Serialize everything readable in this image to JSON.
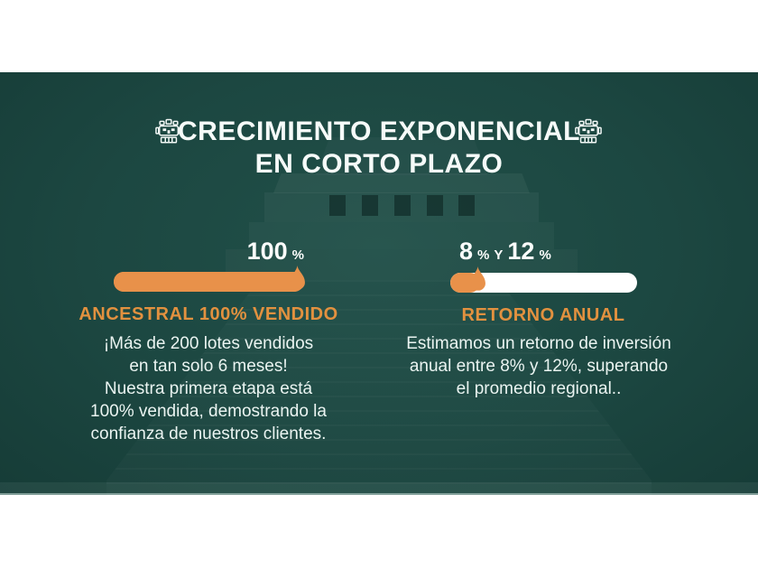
{
  "slide": {
    "title": {
      "line1": "CRECIMIENTO EXPONENCIAL",
      "line2": "EN CORTO PLAZO"
    },
    "title_icons": {
      "left": "mayan-mask",
      "right": "mayan-mask"
    },
    "colors": {
      "background_green": "#1C4741",
      "accent_orange": "#E8914A",
      "heading_orange": "#E2913F",
      "track_white": "#FFFFFF",
      "text_light": "#EAF4F1"
    },
    "columns": [
      {
        "id": "ancestral",
        "stat": {
          "big1": "100",
          "small1": "%"
        },
        "progress_percent": 100,
        "heading": "ANCESTRAL 100% VENDIDO",
        "body": "¡Más de 200 lotes vendidos\nen tan solo 6 meses!\nNuestra primera etapa está\n100% vendida, demostrando la\nconfianza de nuestros clientes."
      },
      {
        "id": "retorno",
        "stat": {
          "big1": "8",
          "small1": "%",
          "small2": "Y",
          "big2": "12",
          "small3": "%"
        },
        "progress_percent": 16,
        "heading": "RETORNO ANUAL",
        "body": "Estimamos un retorno de inversión\nanual entre 8% y 12%, superando\nel promedio regional.."
      }
    ]
  }
}
